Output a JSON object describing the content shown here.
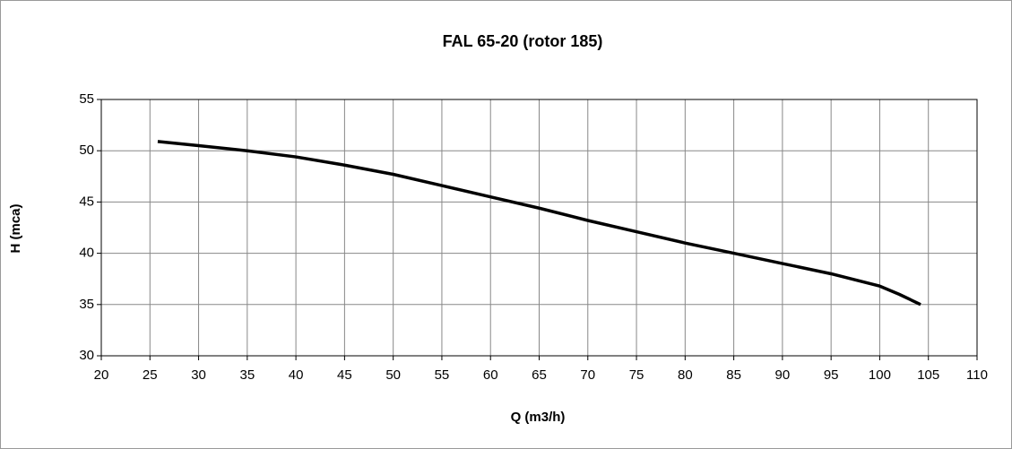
{
  "chart_data": {
    "type": "line",
    "title": "FAL 65-20 (rotor 185)",
    "x_label": "Q (m3/h)",
    "y_label": "H (mca)",
    "x": [
      25.8,
      30,
      35,
      40,
      45,
      50,
      55,
      60,
      65,
      70,
      75,
      80,
      85,
      90,
      95,
      100,
      102,
      104.2
    ],
    "series": [
      {
        "name": "H",
        "color": "#000000",
        "values": [
          50.9,
          50.5,
          50.0,
          49.4,
          48.6,
          47.7,
          46.6,
          45.5,
          44.4,
          43.2,
          42.1,
          41.0,
          40.0,
          39.0,
          38.0,
          36.8,
          36.0,
          35.0
        ]
      }
    ],
    "xlim": [
      20,
      110
    ],
    "xticks": [
      20,
      25,
      30,
      35,
      40,
      45,
      50,
      55,
      60,
      65,
      70,
      75,
      80,
      85,
      90,
      95,
      100,
      105,
      110
    ],
    "ylim": [
      30,
      55
    ],
    "yticks": [
      30,
      35,
      40,
      45,
      50,
      55
    ],
    "grid": true
  }
}
